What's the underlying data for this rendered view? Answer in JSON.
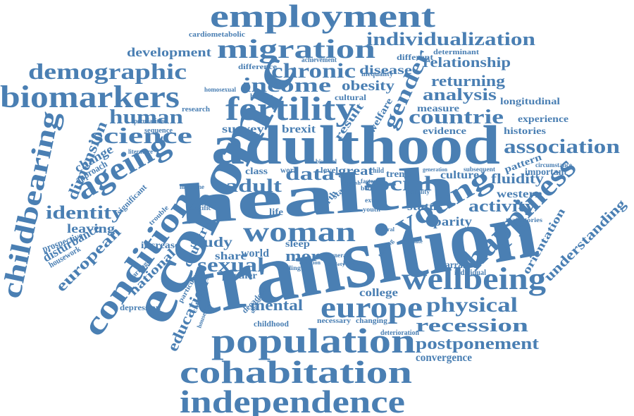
{
  "color": "#4a7fb3",
  "words": [
    "transition",
    "adulthood",
    "economic",
    "health",
    "employment",
    "migration",
    "fertility",
    "population",
    "cohabitation",
    "independence",
    "biomarkers",
    "demographic",
    "childbearing",
    "ageing",
    "condition",
    "wellbeing",
    "europe",
    "happiness",
    "young",
    "woman",
    "individualization",
    "chronic",
    "income",
    "gender",
    "countrie",
    "science",
    "human",
    "association",
    "physical",
    "recession",
    "postponement",
    "social",
    "data",
    "adult",
    "sexual",
    "identity",
    "dimension",
    "european",
    "activity",
    "analysis",
    "returning",
    "relationship",
    "development",
    "disease",
    "obesity",
    "mental",
    "education",
    "country",
    "study",
    "more",
    "leaving",
    "change",
    "disturbance",
    "national",
    "understanding",
    "orientation",
    "fluidity",
    "parity",
    "status",
    "western",
    "college",
    "convergence",
    "share",
    "world",
    "partner",
    "survey",
    "brexit",
    "result",
    "welfare",
    "measure",
    "longitudinal",
    "evidence",
    "experience",
    "histories",
    "pattern",
    "important",
    "culture",
    "prospective",
    "housework",
    "increase",
    "approach",
    "significant",
    "depression",
    "narrative",
    "individual",
    "childhood",
    "necessary",
    "changing",
    "deterioration",
    "decade",
    "sleep",
    "great",
    "trend",
    "class",
    "work",
    "level",
    "child",
    "life",
    "cardiometabolic",
    "different",
    "determinant",
    "achievement",
    "difference",
    "inequality",
    "homosexual",
    "history",
    "cultural",
    "research",
    "peculiarities",
    "sequence",
    "literature",
    "milestone",
    "specific",
    "bisexual",
    "trajectories",
    "circumstance",
    "subsequent",
    "generation",
    "equality",
    "general",
    "labour",
    "particular",
    "categories",
    "marriage",
    "trouble",
    "finding",
    "duration",
    "birth",
    "state",
    "household",
    "undeserved",
    "society",
    "youth",
    "extent",
    "factor",
    "better",
    "english",
    "estimate",
    "several",
    "moving"
  ]
}
